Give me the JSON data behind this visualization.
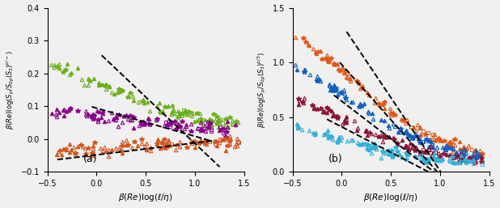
{
  "panel_a": {
    "xlabel": "$\\beta(Re)\\log(\\ell/\\eta)$",
    "ylabel_a": "$\\beta(Re)\\log(S_p/S_{0p}(S_3)^{p/-})$",
    "xlim": [
      -0.5,
      1.5
    ],
    "ylim_a": [
      -0.1,
      0.4
    ],
    "yticks_a": [
      -0.1,
      0.0,
      0.1,
      0.2,
      0.3,
      0.4
    ],
    "label_a": "(a)",
    "colors_a": [
      "#6ab01a",
      "#8b008b",
      "#d2561e"
    ],
    "amps_a": [
      0.27,
      0.095,
      0.07
    ],
    "offsets_a": [
      0.02,
      0.02,
      -0.065
    ],
    "centers_a": [
      0.15,
      0.1,
      0.1
    ],
    "decays_a": [
      1.8,
      1.6,
      -1.4
    ],
    "dlines_a": [
      [
        0.05,
        0.255,
        1.25,
        -0.085
      ],
      [
        -0.05,
        0.098,
        1.15,
        -0.005
      ],
      [
        -0.4,
        -0.063,
        1.2,
        -0.005
      ]
    ]
  },
  "panel_b": {
    "xlabel": "$\\beta(Re)\\log(\\ell/\\eta)$",
    "ylabel_b": "$\\beta(Re)\\log(S_p/S_{0p}(S_3)^{p/3})$",
    "xlim": [
      -0.5,
      1.5
    ],
    "ylim_b": [
      0.0,
      1.5
    ],
    "yticks_b": [
      0.0,
      0.5,
      1.0,
      1.5
    ],
    "label_b": "(b)",
    "colors_b": [
      "#e05818",
      "#1060c0",
      "#8b1535",
      "#30b0d8"
    ],
    "amps_b": [
      1.42,
      1.12,
      0.76,
      0.48
    ],
    "offsets_b": [
      0.1,
      0.09,
      0.08,
      0.06
    ],
    "centers_b": [
      0.15,
      0.1,
      0.05,
      0.0
    ],
    "decays_b": [
      2.2,
      2.2,
      2.2,
      2.2
    ],
    "dlines_b": [
      [
        0.05,
        1.28,
        1.05,
        -0.06
      ],
      [
        -0.02,
        1.0,
        1.0,
        -0.03
      ],
      [
        -0.08,
        0.7,
        0.95,
        -0.01
      ],
      [
        -0.15,
        0.48,
        0.9,
        -0.01
      ]
    ]
  }
}
